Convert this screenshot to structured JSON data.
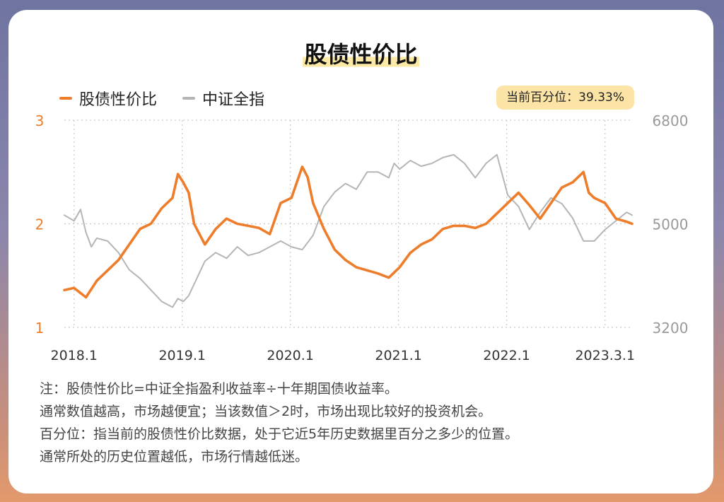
{
  "title": "股债性价比",
  "badge": "当前百分位：39.33%",
  "colors": {
    "primary": "#ee7d2b",
    "secondary": "#b5b5b5",
    "badge_bg": "#fbe4a6"
  },
  "notes": [
    "注：股债性价比=中证全指盈利收益率÷十年期国债收益率。",
    "通常数值越高，市场越便宜；当该数值＞2时，市场出现比较好的投资机会。",
    "百分位：指当前的股债性价比数据，处于它近5年历史数据里百分之多少的位置。",
    "通常所处的历史位置越低，市场行情越低迷。"
  ],
  "chart_data": {
    "type": "line",
    "legend_position": "top-left",
    "grid": true,
    "x_ticks": [
      {
        "t": 0.09,
        "label": "2018.1"
      },
      {
        "t": 1.09,
        "label": "2019.1"
      },
      {
        "t": 2.09,
        "label": "2020.1"
      },
      {
        "t": 3.09,
        "label": "2021.1"
      },
      {
        "t": 4.09,
        "label": "2022.1"
      },
      {
        "t": 5.0,
        "label": "2023.3.1"
      }
    ],
    "x_range": [
      0,
      5.25
    ],
    "y_left": {
      "range": [
        1,
        3
      ],
      "ticks": [
        "1",
        "2",
        "3"
      ]
    },
    "y_right": {
      "range": [
        3200,
        6800
      ],
      "ticks": [
        "3200",
        "5000",
        "6800"
      ]
    },
    "series": [
      {
        "name": "股债性价比",
        "axis": "left",
        "x": [
          0,
          0.09,
          0.2,
          0.3,
          0.4,
          0.5,
          0.6,
          0.7,
          0.8,
          0.9,
          1.0,
          1.05,
          1.1,
          1.15,
          1.2,
          1.3,
          1.4,
          1.5,
          1.6,
          1.7,
          1.8,
          1.9,
          2.0,
          2.1,
          2.2,
          2.25,
          2.3,
          2.4,
          2.5,
          2.6,
          2.7,
          2.8,
          2.9,
          3.0,
          3.1,
          3.2,
          3.3,
          3.4,
          3.5,
          3.6,
          3.7,
          3.8,
          3.9,
          4.0,
          4.1,
          4.2,
          4.3,
          4.4,
          4.5,
          4.6,
          4.7,
          4.8,
          4.85,
          4.9,
          5.0,
          5.1,
          5.2,
          5.25
        ],
        "values": [
          1.36,
          1.38,
          1.29,
          1.45,
          1.55,
          1.65,
          1.8,
          1.95,
          2.0,
          2.15,
          2.25,
          2.48,
          2.4,
          2.3,
          2.0,
          1.8,
          1.95,
          2.05,
          2.0,
          1.98,
          1.96,
          1.9,
          2.2,
          2.25,
          2.55,
          2.45,
          2.2,
          1.95,
          1.75,
          1.65,
          1.58,
          1.55,
          1.52,
          1.48,
          1.58,
          1.72,
          1.8,
          1.85,
          1.95,
          1.98,
          1.98,
          1.96,
          2.0,
          2.1,
          2.2,
          2.3,
          2.18,
          2.05,
          2.2,
          2.35,
          2.4,
          2.5,
          2.3,
          2.25,
          2.2,
          2.05,
          2.02,
          2.0
        ]
      },
      {
        "name": "中证全指",
        "axis": "right",
        "x": [
          0,
          0.09,
          0.15,
          0.2,
          0.25,
          0.3,
          0.4,
          0.5,
          0.6,
          0.7,
          0.8,
          0.9,
          1.0,
          1.05,
          1.1,
          1.15,
          1.2,
          1.3,
          1.4,
          1.5,
          1.6,
          1.7,
          1.8,
          1.9,
          2.0,
          2.1,
          2.2,
          2.3,
          2.4,
          2.5,
          2.6,
          2.7,
          2.8,
          2.9,
          3.0,
          3.05,
          3.1,
          3.2,
          3.3,
          3.4,
          3.5,
          3.6,
          3.7,
          3.8,
          3.9,
          4.0,
          4.1,
          4.2,
          4.3,
          4.4,
          4.5,
          4.6,
          4.7,
          4.8,
          4.9,
          5.0,
          5.1,
          5.2,
          5.25
        ],
        "values": [
          5150,
          5050,
          5250,
          4850,
          4600,
          4750,
          4700,
          4500,
          4200,
          4050,
          3850,
          3650,
          3550,
          3700,
          3650,
          3750,
          3950,
          4350,
          4500,
          4400,
          4600,
          4450,
          4500,
          4600,
          4700,
          4600,
          4550,
          4800,
          5300,
          5550,
          5700,
          5600,
          5900,
          5900,
          5800,
          6050,
          5950,
          6100,
          6000,
          6050,
          6150,
          6200,
          6050,
          5800,
          6050,
          6200,
          5500,
          5300,
          4900,
          5200,
          5450,
          5350,
          5100,
          4700,
          4700,
          4900,
          5050,
          5200,
          5150
        ]
      }
    ]
  }
}
